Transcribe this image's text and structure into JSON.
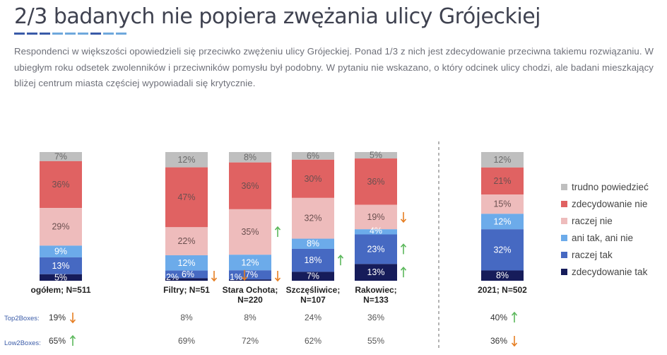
{
  "title": "2/3 badanych nie popiera zwężania ulicy Grójeckiej",
  "description": "Respondenci w większości opowiedzieli się przeciwko zwężeniu ulicy Grójeckiej. Ponad 1/3 z nich jest zdecydowanie przeciwna takiemu rozwiązaniu. W ubiegłym roku odsetek zwolenników i przeciwników pomysłu był podobny. W pytaniu nie wskazano, o który odcinek ulicy chodzi, ale badani mieszkający bliżej centrum miasta częściej wypowiadali się krytycznie.",
  "underline_colors": [
    "#3a5ba8",
    "#3a5ba8",
    "#3a5ba8",
    "#6fa8dc",
    "#6fa8dc",
    "#6fa8dc",
    "#3a5ba8",
    "#6fa8dc",
    "#6fa8dc"
  ],
  "row_labels": {
    "top2": "Top2Boxes:",
    "low2": "Low2Boxes:"
  },
  "chart_data": {
    "type": "bar",
    "stacked": true,
    "orientation": "vertical",
    "ylim": [
      0,
      100
    ],
    "series": [
      {
        "name": "trudno powiedzieć",
        "color": "#bfbfbf"
      },
      {
        "name": "zdecydowanie nie",
        "color": "#e06262"
      },
      {
        "name": "raczej nie",
        "color": "#eebcbc"
      },
      {
        "name": "ani tak, ani nie",
        "color": "#6cabea"
      },
      {
        "name": "raczej tak",
        "color": "#4669c2"
      },
      {
        "name": "zdecydowanie tak",
        "color": "#161c5a"
      }
    ],
    "legend_position": "right",
    "categories": [
      {
        "label": "ogółem; N=511",
        "label_style": "bold",
        "values": [
          7,
          36,
          29,
          9,
          13,
          5
        ],
        "labels": [
          "7%",
          "36%",
          "29%",
          "9%",
          "13%",
          "5%"
        ],
        "top2": "19%",
        "top2_arrow": "down",
        "low2": "65%",
        "low2_arrow": "up"
      },
      {
        "label": "Filtry; N=51",
        "label_style": "bold",
        "values": [
          12,
          47,
          22,
          12,
          6,
          2
        ],
        "labels": [
          "12%",
          "47%",
          "22%",
          "12%",
          "6%",
          "2%"
        ],
        "top2": "8%",
        "top2_arrow": "",
        "low2": "69%",
        "low2_arrow": "",
        "arrows": [
          {
            "segment": 5,
            "dir": "down"
          }
        ]
      },
      {
        "label": "Stara Ochota; N=220",
        "label_style": "bold",
        "values": [
          8,
          36,
          35,
          12,
          7,
          1
        ],
        "labels": [
          "8%",
          "36%",
          "35%",
          "12%",
          "7%",
          "1%"
        ],
        "top2": "8%",
        "top2_arrow": "",
        "low2": "72%",
        "low2_arrow": "",
        "arrows": [
          {
            "segment": 2,
            "dir": "up"
          },
          {
            "segment": 4,
            "dir": "down"
          },
          {
            "segment": 5,
            "dir": "down"
          }
        ]
      },
      {
        "label": "Szczęśliwice; N=107",
        "label_style": "bold",
        "values": [
          6,
          30,
          32,
          8,
          18,
          7
        ],
        "labels": [
          "6%",
          "30%",
          "32%",
          "8%",
          "18%",
          "7%"
        ],
        "top2": "24%",
        "top2_arrow": "",
        "low2": "62%",
        "low2_arrow": "",
        "arrows": [
          {
            "segment": 4,
            "dir": "up"
          }
        ]
      },
      {
        "label": "Rakowiec; N=133",
        "label_style": "bold",
        "values": [
          5,
          36,
          19,
          4,
          23,
          13
        ],
        "labels": [
          "5%",
          "36%",
          "19%",
          "4%",
          "23%",
          "13%"
        ],
        "top2": "36%",
        "top2_arrow": "",
        "low2": "55%",
        "low2_arrow": "",
        "arrows": [
          {
            "segment": 2,
            "dir": "down"
          },
          {
            "segment": 4,
            "dir": "up"
          },
          {
            "segment": 5,
            "dir": "up"
          }
        ]
      },
      {
        "label": "2021; N=502",
        "label_style": "bold",
        "values": [
          12,
          21,
          15,
          12,
          32,
          8
        ],
        "labels": [
          "12%",
          "21%",
          "15%",
          "12%",
          "32%",
          "8%"
        ],
        "top2": "40%",
        "top2_arrow": "up",
        "low2": "36%",
        "low2_arrow": "down"
      }
    ],
    "colors": {
      "arrow_up": "#5cb85c",
      "arrow_down": "#e67e22",
      "label_light": "#ffffff",
      "label_dark": "#7a5a5a"
    }
  }
}
